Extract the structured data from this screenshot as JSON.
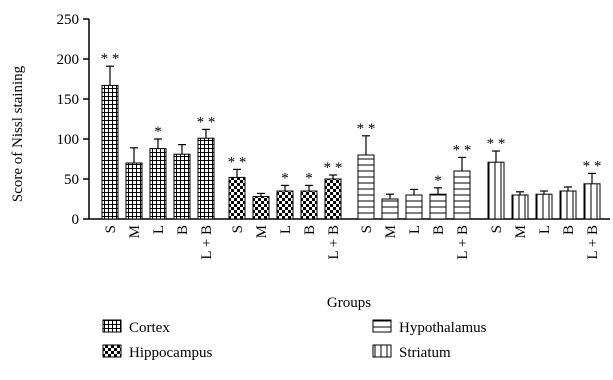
{
  "chart_data": {
    "type": "bar",
    "ylabel": "Score of Nissl staining",
    "xlabel": "Groups",
    "ylim": [
      0,
      250
    ],
    "yticks": [
      "0",
      "50",
      "100",
      "150",
      "200",
      "250"
    ],
    "categories": [
      "S",
      "M",
      "L",
      "B",
      "L + B"
    ],
    "series": [
      {
        "name": "Cortex",
        "pattern": "grid",
        "values": [
          167,
          70,
          88,
          81,
          101
        ],
        "errors": [
          24,
          19,
          12,
          12,
          11
        ],
        "significance": [
          "* *",
          "",
          "*",
          "",
          "* *"
        ]
      },
      {
        "name": "Hippocampus",
        "pattern": "checker",
        "values": [
          52,
          28,
          35,
          35,
          50
        ],
        "errors": [
          10,
          4,
          7,
          7,
          5
        ],
        "significance": [
          "* *",
          "",
          "*",
          "*",
          "* *"
        ]
      },
      {
        "name": "Hypothalamus",
        "pattern": "hlines",
        "values": [
          80,
          25,
          30,
          31,
          60
        ],
        "errors": [
          24,
          6,
          7,
          8,
          17
        ],
        "significance": [
          "* *",
          "",
          "",
          "*",
          "* *"
        ]
      },
      {
        "name": "Striatum",
        "pattern": "vlines",
        "values": [
          71,
          30,
          31,
          35,
          44
        ],
        "errors": [
          14,
          4,
          4,
          5,
          13
        ],
        "significance": [
          "* *",
          "",
          "",
          "",
          "* *"
        ]
      }
    ],
    "legend_position": "bottom"
  }
}
